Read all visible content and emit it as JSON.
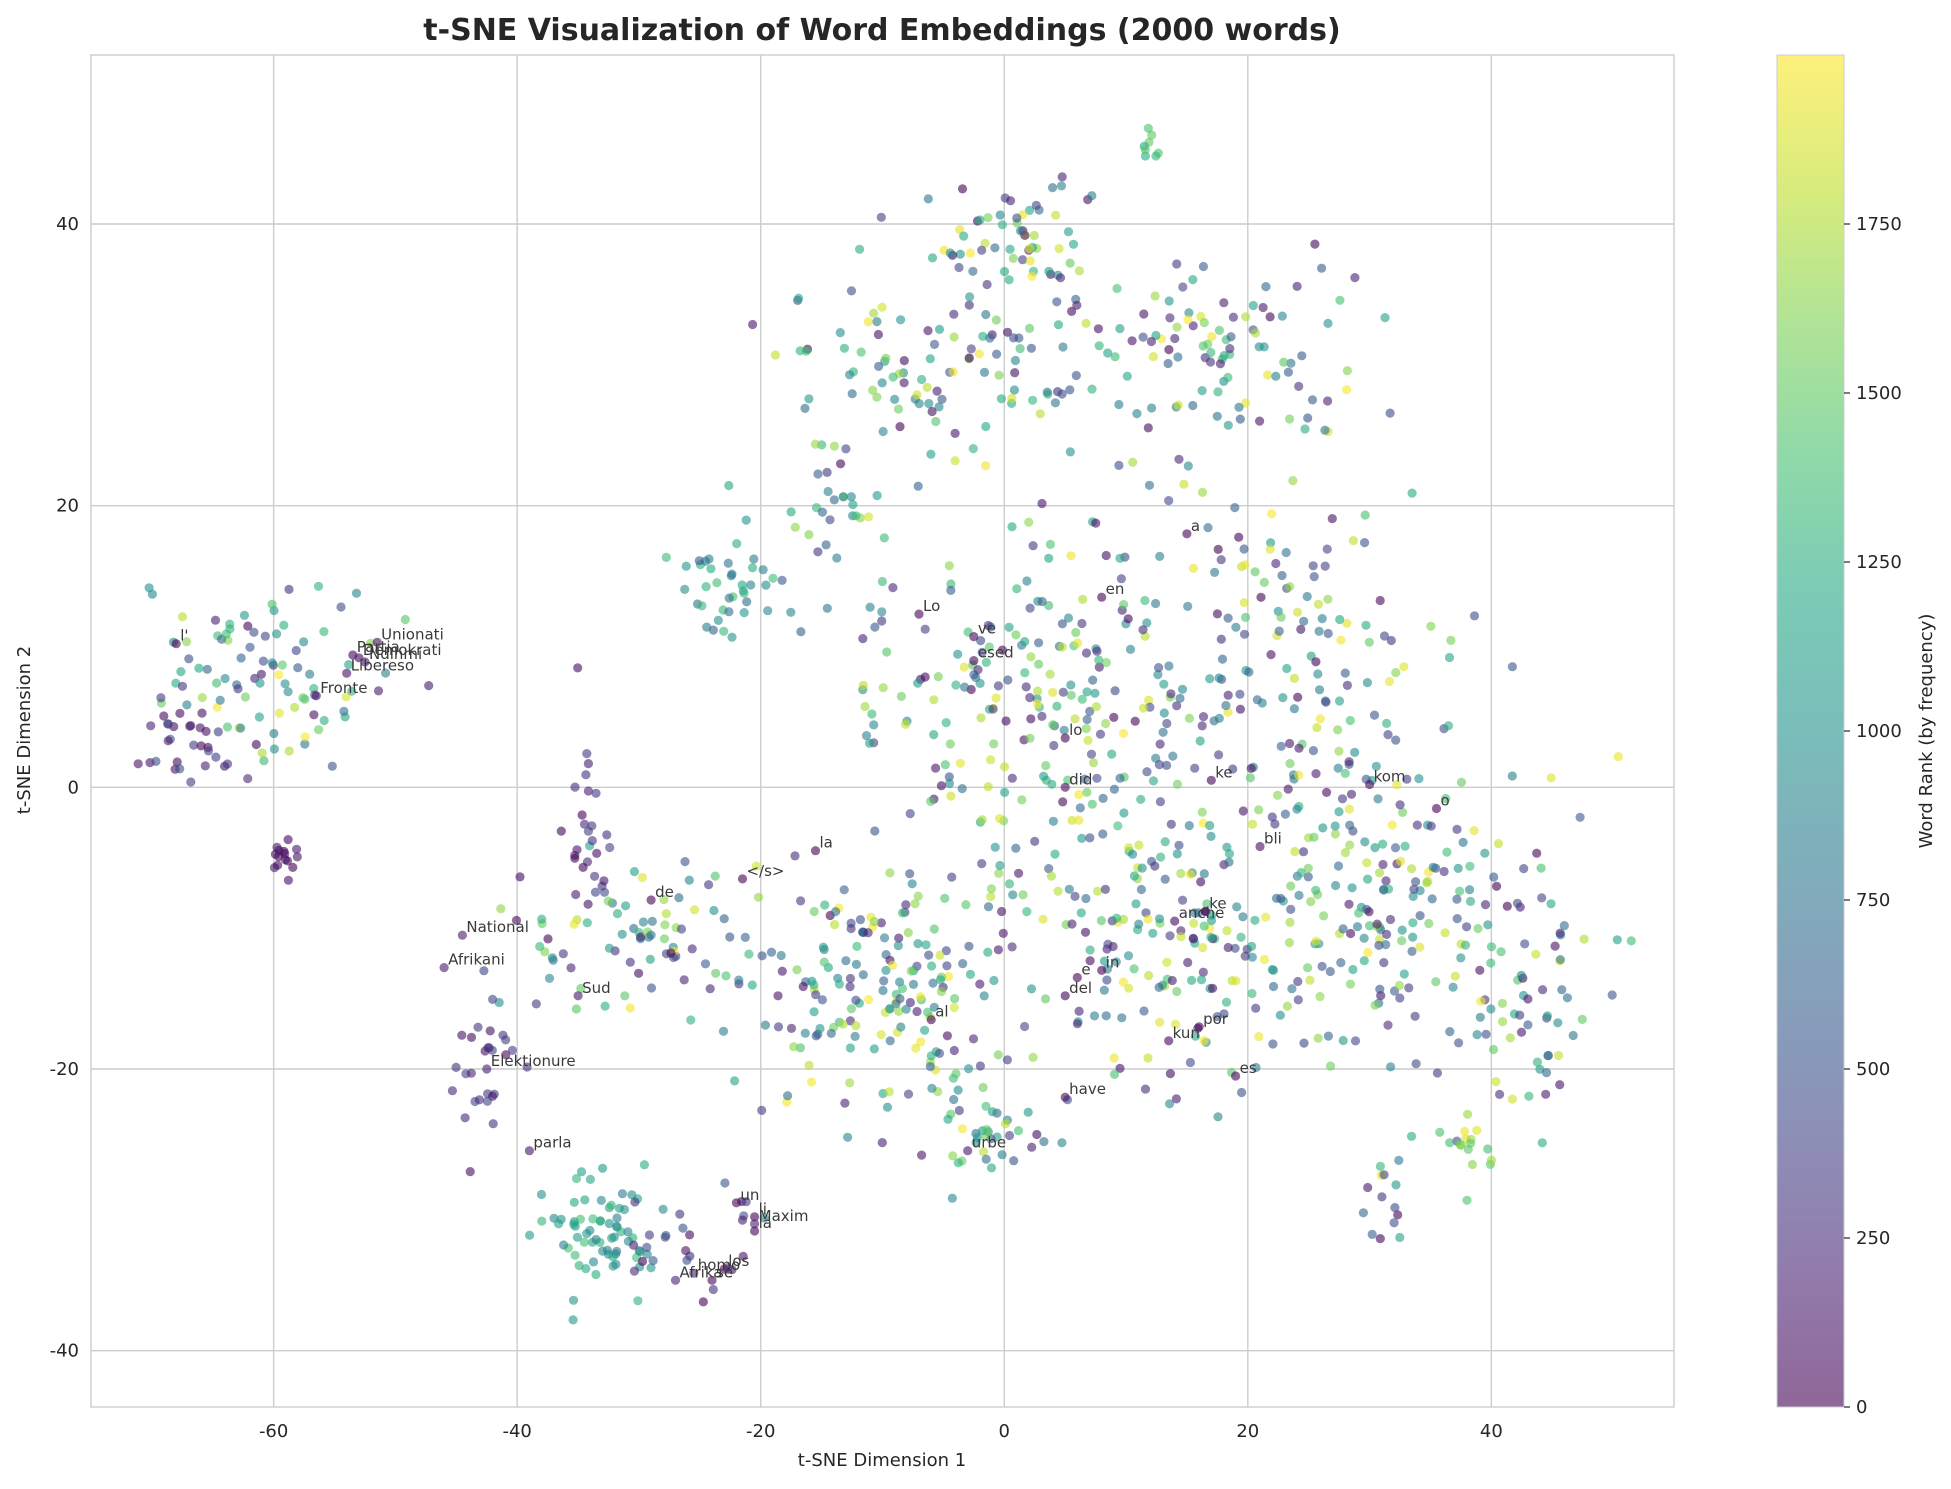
{
  "chart_data": {
    "type": "scatter",
    "title": "t-SNE Visualization of Word Embeddings (2000 words)",
    "xlabel": "t-SNE Dimension 1",
    "ylabel": "t-SNE Dimension 2",
    "xlim": [
      -75,
      55
    ],
    "ylim": [
      -44,
      52
    ],
    "x_ticks": [
      -60,
      -40,
      -20,
      0,
      20,
      40
    ],
    "y_ticks": [
      -40,
      -20,
      0,
      20,
      40
    ],
    "x_tick_labels": [
      "-60",
      "-40",
      "-20",
      "0",
      "20",
      "40"
    ],
    "y_tick_labels": [
      "-40",
      "-20",
      "0",
      "20",
      "40"
    ],
    "grid": true,
    "point_count": 2000,
    "colorbar": {
      "label": "Word Rank (by frequency)",
      "colormap": "viridis",
      "range": [
        0,
        2000
      ],
      "ticks": [
        0,
        250,
        500,
        750,
        1000,
        1250,
        1500,
        1750
      ],
      "tick_labels": [
        "0",
        "250",
        "500",
        "750",
        "1000",
        "1250",
        "1500",
        "1750"
      ]
    },
    "alpha": 0.6,
    "clusters": [
      {
        "cx": 0,
        "cy": 39,
        "sx": 4,
        "sy": 2.2,
        "n": 60,
        "rank": [
          0,
          2000
        ]
      },
      {
        "cx": -6,
        "cy": 30,
        "sx": 5.5,
        "sy": 3.2,
        "n": 100,
        "rank": [
          0,
          2000
        ]
      },
      {
        "cx": 17,
        "cy": 31,
        "sx": 7,
        "sy": 3.5,
        "n": 110,
        "rank": [
          0,
          2000
        ]
      },
      {
        "cx": 12,
        "cy": 45.5,
        "sx": 0.6,
        "sy": 0.6,
        "n": 8,
        "rank": [
          1200,
          1500
        ]
      },
      {
        "cx": -23,
        "cy": 14.5,
        "sx": 2.5,
        "sy": 1.8,
        "n": 40,
        "rank": [
          500,
          1400
        ]
      },
      {
        "cx": -15,
        "cy": 20,
        "sx": 2.5,
        "sy": 2.5,
        "n": 30,
        "rank": [
          200,
          1700
        ]
      },
      {
        "cx": 3,
        "cy": 7,
        "sx": 9,
        "sy": 7,
        "n": 240,
        "rank": [
          0,
          2000
        ]
      },
      {
        "cx": 24,
        "cy": 10,
        "sx": 6,
        "sy": 6,
        "n": 110,
        "rank": [
          0,
          2000
        ]
      },
      {
        "cx": 14,
        "cy": -10,
        "sx": 9,
        "sy": 6,
        "n": 230,
        "rank": [
          0,
          2000
        ]
      },
      {
        "cx": 32,
        "cy": -7,
        "sx": 7,
        "sy": 6,
        "n": 170,
        "rank": [
          0,
          2000
        ]
      },
      {
        "cx": 43,
        "cy": -15,
        "sx": 3.5,
        "sy": 5,
        "n": 60,
        "rank": [
          0,
          2000
        ]
      },
      {
        "cx": -10,
        "cy": -15,
        "sx": 5,
        "sy": 5,
        "n": 170,
        "rank": [
          0,
          2000
        ]
      },
      {
        "cx": -2,
        "cy": -25,
        "sx": 2,
        "sy": 2,
        "n": 30,
        "rank": [
          0,
          2000
        ]
      },
      {
        "cx": -30,
        "cy": -11,
        "sx": 6,
        "sy": 2.5,
        "n": 80,
        "rank": [
          0,
          2000
        ]
      },
      {
        "cx": -60,
        "cy": 8,
        "sx": 5,
        "sy": 3,
        "n": 90,
        "rank": [
          0,
          2000
        ]
      },
      {
        "cx": -34,
        "cy": -32,
        "sx": 2.5,
        "sy": 2.8,
        "n": 70,
        "rank": [
          800,
          1400
        ]
      },
      {
        "cx": -26,
        "cy": -32,
        "sx": 3,
        "sy": 2,
        "n": 25,
        "rank": [
          0,
          600
        ]
      },
      {
        "cx": -42,
        "cy": -19,
        "sx": 2,
        "sy": 4,
        "n": 30,
        "rank": [
          0,
          400
        ]
      },
      {
        "cx": -34,
        "cy": -2,
        "sx": 1,
        "sy": 3,
        "n": 25,
        "rank": [
          0,
          400
        ]
      },
      {
        "cx": -59,
        "cy": -5,
        "sx": 0.8,
        "sy": 0.8,
        "n": 15,
        "rank": [
          0,
          150
        ]
      },
      {
        "cx": -66,
        "cy": 3,
        "sx": 2.5,
        "sy": 1.5,
        "n": 30,
        "rank": [
          0,
          500
        ]
      },
      {
        "cx": 31,
        "cy": -29,
        "sx": 1.2,
        "sy": 2,
        "n": 15,
        "rank": [
          0,
          2000
        ]
      },
      {
        "cx": 38,
        "cy": -25,
        "sx": 1.5,
        "sy": 1.5,
        "n": 15,
        "rank": [
          1300,
          2000
        ]
      }
    ],
    "annotated_words": [
      {
        "word": "Unionati",
        "x": -51.5,
        "y": 10.3,
        "rank": 60
      },
      {
        "word": "Partia",
        "x": -53.5,
        "y": 9.4,
        "rank": 40
      },
      {
        "word": "Demokrati",
        "x": -53,
        "y": 9.2,
        "rank": 50
      },
      {
        "word": "Ndihmi",
        "x": -52.5,
        "y": 8.9,
        "rank": 70
      },
      {
        "word": "Libereso",
        "x": -54,
        "y": 8.1,
        "rank": 80
      },
      {
        "word": "Fronte",
        "x": -56.5,
        "y": 6.5,
        "rank": 90
      },
      {
        "word": "l'",
        "x": -68,
        "y": 10.2,
        "rank": 5
      },
      {
        "word": "a",
        "x": 15,
        "y": 18,
        "rank": 3
      },
      {
        "word": "en",
        "x": 8,
        "y": 13.5,
        "rank": 10
      },
      {
        "word": "Lo",
        "x": -7,
        "y": 12.3,
        "rank": 15
      },
      {
        "word": "ve",
        "x": -2.5,
        "y": 10.7,
        "rank": 20
      },
      {
        "word": "esed",
        "x": -2.5,
        "y": 9,
        "rank": 25
      },
      {
        "word": "lo",
        "x": 5,
        "y": 3.5,
        "rank": 12
      },
      {
        "word": "did",
        "x": 5,
        "y": 0,
        "rank": 30
      },
      {
        "word": "ke",
        "x": 17,
        "y": 0.5,
        "rank": 8
      },
      {
        "word": "kom",
        "x": 30,
        "y": 0.2,
        "rank": 45
      },
      {
        "word": "o",
        "x": 35.5,
        "y": -1.5,
        "rank": 4
      },
      {
        "word": "bli",
        "x": 21,
        "y": -4.2,
        "rank": 55
      },
      {
        "word": "la",
        "x": -15.5,
        "y": -4.5,
        "rank": 2
      },
      {
        "word": "</s>",
        "x": -21.5,
        "y": -6.5,
        "rank": 0
      },
      {
        "word": "de",
        "x": -29,
        "y": -8,
        "rank": 1
      },
      {
        "word": "anche",
        "x": 14,
        "y": -9.5,
        "rank": 35
      },
      {
        "word": "ke",
        "x": 16.5,
        "y": -8.8,
        "rank": 18
      },
      {
        "word": "e",
        "x": 6,
        "y": -13.5,
        "rank": 6
      },
      {
        "word": "in",
        "x": 8,
        "y": -13,
        "rank": 7
      },
      {
        "word": "del",
        "x": 5,
        "y": -14.8,
        "rank": 14
      },
      {
        "word": "al",
        "x": -6,
        "y": -16.5,
        "rank": 16
      },
      {
        "word": "por",
        "x": 16,
        "y": -17,
        "rank": 22
      },
      {
        "word": "kun",
        "x": 13.5,
        "y": -18,
        "rank": 28
      },
      {
        "word": "es",
        "x": 19,
        "y": -20.5,
        "rank": 11
      },
      {
        "word": "have",
        "x": 5,
        "y": -22,
        "rank": 65
      },
      {
        "word": "urbe",
        "x": -3,
        "y": -25.8,
        "rank": 120
      },
      {
        "word": "National",
        "x": -44.5,
        "y": -10.5,
        "rank": 140
      },
      {
        "word": "Afrikani",
        "x": -46,
        "y": -12.8,
        "rank": 150
      },
      {
        "word": "Sud",
        "x": -35,
        "y": -14.8,
        "rank": 130
      },
      {
        "word": "Elektionure",
        "x": -42.5,
        "y": -20,
        "rank": 160
      },
      {
        "word": "parla",
        "x": -39,
        "y": -25.8,
        "rank": 110
      },
      {
        "word": "un",
        "x": -22,
        "y": -29.5,
        "rank": 9
      },
      {
        "word": "li",
        "x": -20.5,
        "y": -30.5,
        "rank": 13
      },
      {
        "word": "Maxim",
        "x": -20.5,
        "y": -31,
        "rank": 170
      },
      {
        "word": "la",
        "x": -20.5,
        "y": -31.5,
        "rank": 19
      },
      {
        "word": "homo",
        "x": -25.5,
        "y": -34.5,
        "rank": 180
      },
      {
        "word": "los",
        "x": -23,
        "y": -34.2,
        "rank": 24
      },
      {
        "word": "Afrika",
        "x": -27,
        "y": -35,
        "rank": 190
      },
      {
        "word": "se",
        "x": -24,
        "y": -35,
        "rank": 27
      }
    ]
  }
}
